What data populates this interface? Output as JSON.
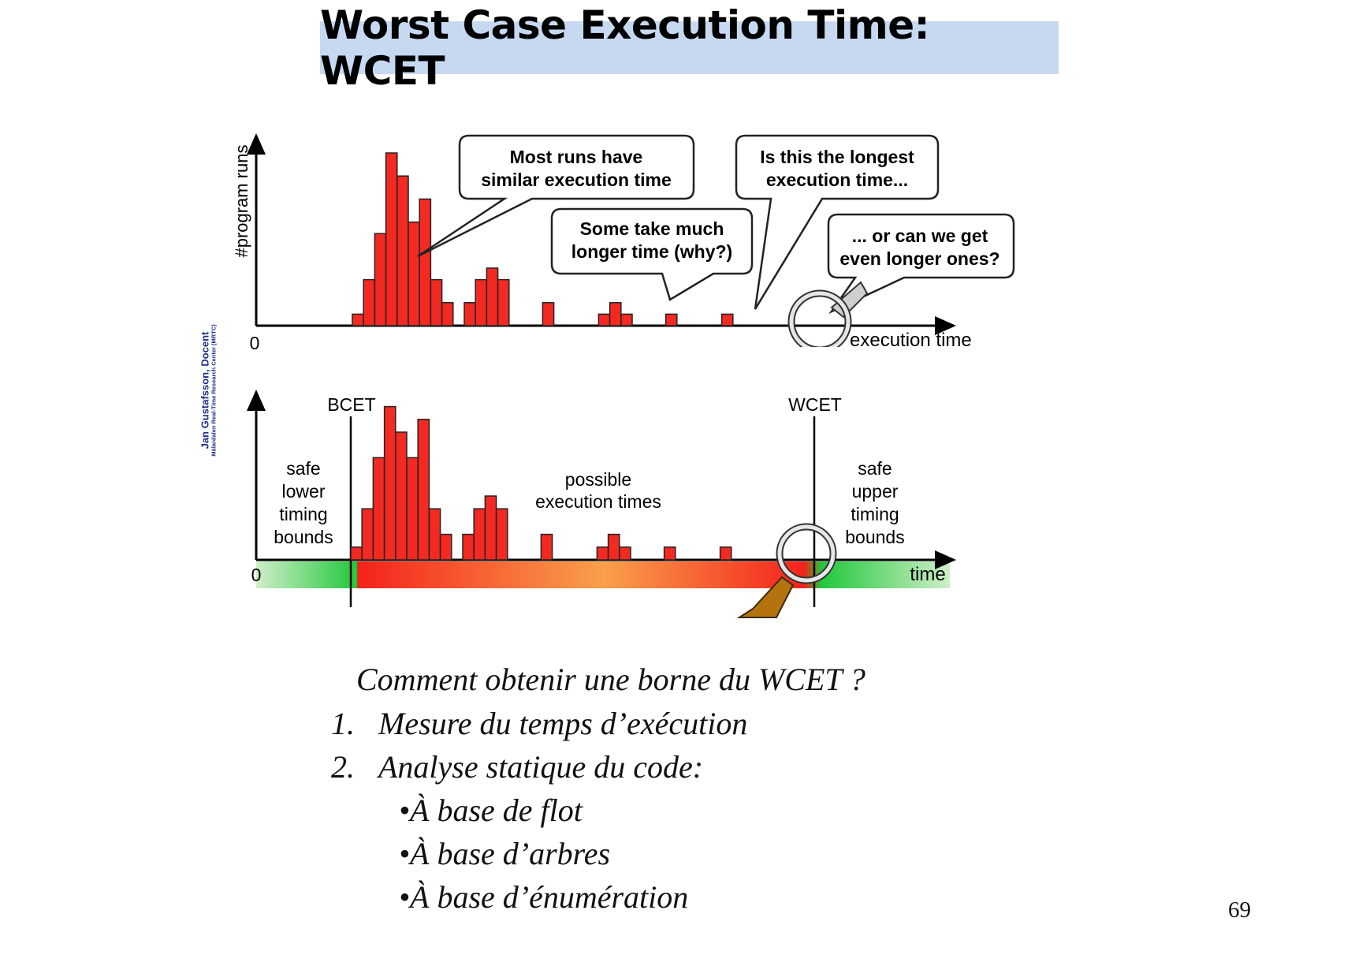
{
  "slide": {
    "title": "Worst Case Execution Time:  WCET",
    "credit_name": "Jan Gustafsson, Docent",
    "credit_org": "Mälardalen Real-Time Research Center (MRTC)",
    "page_number": "69"
  },
  "diagram": {
    "top": {
      "ylabel": "#program runs",
      "xlabel": "execution time",
      "origin": "0",
      "callouts": [
        "Most runs have\nsimilar execution time",
        "Some take much\nlonger time (why?)",
        "Is this the longest\nexecution time...",
        "... or can we get\neven longer ones?"
      ],
      "histogram": [
        1,
        4,
        8,
        15,
        13,
        9,
        11,
        4,
        2,
        0,
        2,
        4,
        5,
        4,
        0,
        0,
        0,
        2,
        0,
        0,
        0,
        0,
        1,
        2,
        1,
        0,
        0,
        0,
        1,
        0,
        0,
        0,
        0,
        1
      ]
    },
    "bottom": {
      "bcet_label": "BCET",
      "wcet_label": "WCET",
      "origin": "0",
      "xlabel": "time",
      "left_region": "safe\nlower\ntiming\nbounds",
      "middle_region": "possible\nexecution times",
      "right_region": "safe\nupper\ntiming\nbounds",
      "histogram": [
        1,
        4,
        8,
        12,
        10,
        8,
        11,
        4,
        2,
        0,
        2,
        4,
        5,
        4,
        0,
        0,
        0,
        2,
        0,
        0,
        0,
        0,
        1,
        2,
        1,
        0,
        0,
        0,
        1,
        0,
        0,
        0,
        0,
        1
      ],
      "colors": {
        "safe": "#22c83c",
        "possible_outer": "#f5221c",
        "possible_center": "#f9a04a"
      }
    }
  },
  "text": {
    "question": "Comment obtenir une borne du WCET ?",
    "items": [
      {
        "num": "1.",
        "label": "Mesure du temps d’exécution"
      },
      {
        "num": "2.",
        "label": "Analyse statique du code:"
      }
    ],
    "subitems": [
      "À base de flot",
      "À base d’arbres",
      "À base d’énumération"
    ]
  }
}
